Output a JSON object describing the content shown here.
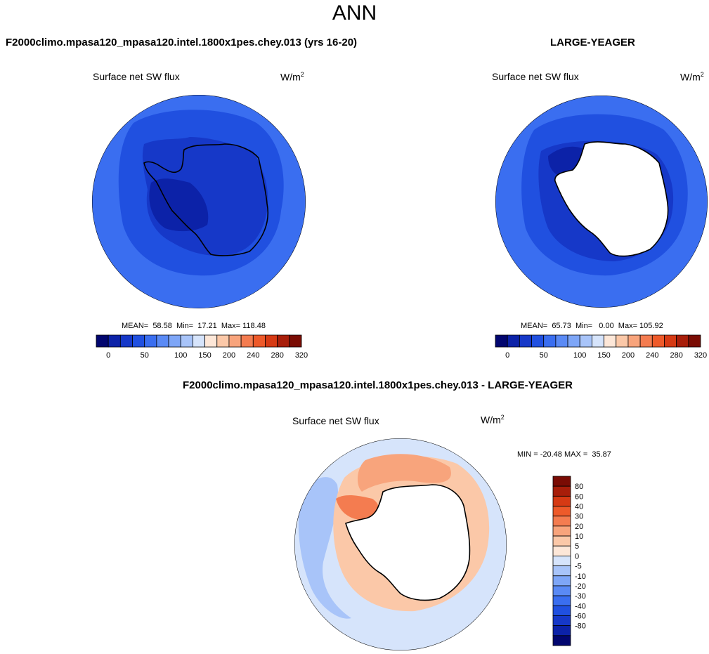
{
  "figure": {
    "title": "ANN"
  },
  "panels": [
    {
      "heading": "F2000climo.mpasa120_mpasa120.intel.1800x1pes.chey.013 (yrs 16-20)",
      "variable": "Surface net SW flux",
      "units_base": "W/m",
      "units_exp": "2",
      "stats": "MEAN=  58.58  Min=  17.21  Max= 118.48"
    },
    {
      "heading": "LARGE-YEAGER",
      "variable": "Surface net SW flux",
      "units_base": "W/m",
      "units_exp": "2",
      "stats": "MEAN=  65.73  Min=   0.00  Max= 105.92"
    },
    {
      "heading": "F2000climo.mpasa120_mpasa120.intel.1800x1pes.chey.013 - LARGE-YEAGER",
      "variable": "Surface net SW flux",
      "units_base": "W/m",
      "units_exp": "2",
      "stats": "MIN = -20.48 MAX =  35.87"
    }
  ],
  "colorbars": {
    "horizontal": {
      "colors": [
        "#02066f",
        "#0c22a8",
        "#1638c8",
        "#2050e0",
        "#3a6ef0",
        "#5a8af5",
        "#7ea6f7",
        "#a8c4f9",
        "#d6e4fb",
        "#fde7d8",
        "#fbc8a8",
        "#f8a47c",
        "#f47c50",
        "#ee5a2a",
        "#d63a14",
        "#a81e0a",
        "#7a0c04"
      ],
      "tick_labels": [
        "0",
        "50",
        "100",
        "150",
        "200",
        "240",
        "280",
        "320"
      ],
      "tick_after_box": [
        1,
        4,
        7,
        9,
        11,
        13,
        15,
        17
      ]
    },
    "vertical": {
      "colors": [
        "#7a0c04",
        "#a81e0a",
        "#d63a14",
        "#ee5a2a",
        "#f47c50",
        "#f8a47c",
        "#fbc8a8",
        "#fde7d8",
        "#d6e4fb",
        "#a8c4f9",
        "#7ea6f7",
        "#5a8af5",
        "#3a6ef0",
        "#2050e0",
        "#1638c8",
        "#0c22a8",
        "#02066f"
      ],
      "tick_labels": [
        "80",
        "60",
        "40",
        "30",
        "20",
        "10",
        "5",
        "0",
        "-5",
        "-10",
        "-20",
        "-30",
        "-40",
        "-60",
        "-80"
      ]
    }
  },
  "map_colors": {
    "outer": "#3a6ef0",
    "mid": "#2050e0",
    "inner": "#1638c8",
    "deep": "#0c22a8",
    "diff_bg": "#d6e4fb",
    "diff_pos1": "#fbc8a8",
    "diff_pos2": "#f8a47c",
    "diff_pos3": "#f47c50",
    "diff_neg": "#a8c4f9",
    "land_white": "#ffffff"
  }
}
